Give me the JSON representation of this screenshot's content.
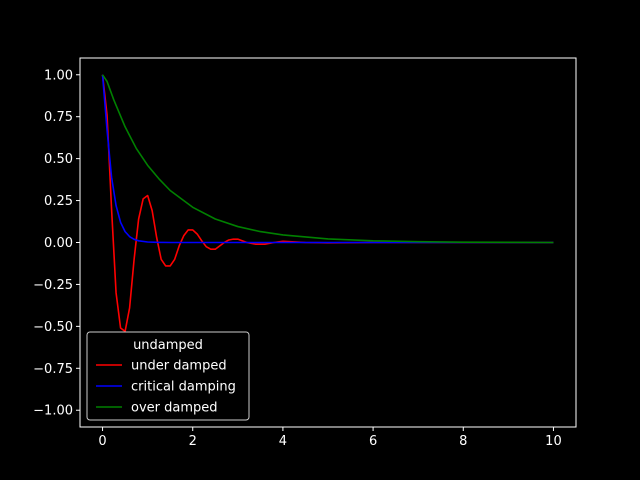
{
  "chart_data": {
    "type": "line",
    "title": "",
    "xlabel": "",
    "ylabel": "",
    "xlim": [
      -0.5,
      10.5
    ],
    "ylim": [
      -1.1,
      1.1
    ],
    "xticks": [
      0,
      2,
      4,
      6,
      8,
      10
    ],
    "yticks": [
      -1.0,
      -0.75,
      -0.5,
      -0.25,
      0.0,
      0.25,
      0.5,
      0.75,
      1.0
    ],
    "xtick_labels": [
      "0",
      "2",
      "4",
      "6",
      "8",
      "10"
    ],
    "ytick_labels": [
      "−1.00",
      "−0.75",
      "−0.50",
      "−0.25",
      "0.00",
      "0.25",
      "0.50",
      "0.75",
      "1.00"
    ],
    "grid": false,
    "legend": {
      "placement": "lower-left",
      "title": "undamped"
    },
    "series": [
      {
        "name": "under damped",
        "color": "#ff0000",
        "x": [
          0,
          0.1,
          0.2,
          0.3,
          0.4,
          0.5,
          0.6,
          0.7,
          0.8,
          0.9,
          1.0,
          1.1,
          1.2,
          1.3,
          1.4,
          1.5,
          1.6,
          1.7,
          1.8,
          1.9,
          2.0,
          2.1,
          2.2,
          2.3,
          2.4,
          2.5,
          2.6,
          2.7,
          2.8,
          2.9,
          3.0,
          3.2,
          3.4,
          3.6,
          3.8,
          4.0,
          4.5,
          5.0,
          6.0,
          7.0,
          8.0,
          9.0,
          10.0
        ],
        "y": [
          1.0,
          0.76,
          0.2,
          -0.3,
          -0.51,
          -0.53,
          -0.39,
          -0.1,
          0.14,
          0.26,
          0.28,
          0.19,
          0.03,
          -0.1,
          -0.14,
          -0.14,
          -0.1,
          -0.02,
          0.04,
          0.075,
          0.075,
          0.05,
          0.01,
          -0.025,
          -0.04,
          -0.04,
          -0.02,
          0.0,
          0.015,
          0.02,
          0.02,
          0.0,
          -0.01,
          -0.01,
          0.0,
          0.007,
          0.0,
          -0.002,
          0.0,
          0.0,
          0.0,
          0.0,
          0.0
        ]
      },
      {
        "name": "critical damping",
        "color": "#0000ff",
        "x": [
          0,
          0.1,
          0.2,
          0.3,
          0.4,
          0.5,
          0.6,
          0.7,
          0.8,
          1.0,
          1.2,
          1.5,
          2.0,
          3.0,
          4.0,
          6.0,
          8.0,
          10.0
        ],
        "y": [
          1.0,
          0.67,
          0.39,
          0.22,
          0.12,
          0.065,
          0.035,
          0.019,
          0.01,
          0.003,
          0.001,
          0.0,
          0.0,
          0.0,
          0.0,
          0.0,
          0.0,
          0.0
        ]
      },
      {
        "name": "over damped",
        "color": "#008000",
        "x": [
          0,
          0.1,
          0.25,
          0.5,
          0.75,
          1.0,
          1.25,
          1.5,
          2.0,
          2.5,
          3.0,
          3.5,
          4.0,
          5.0,
          6.0,
          7.0,
          8.0,
          9.0,
          10.0
        ],
        "y": [
          1.0,
          0.96,
          0.85,
          0.69,
          0.56,
          0.46,
          0.38,
          0.31,
          0.21,
          0.14,
          0.095,
          0.065,
          0.045,
          0.021,
          0.01,
          0.005,
          0.002,
          0.001,
          0.0
        ]
      }
    ]
  }
}
